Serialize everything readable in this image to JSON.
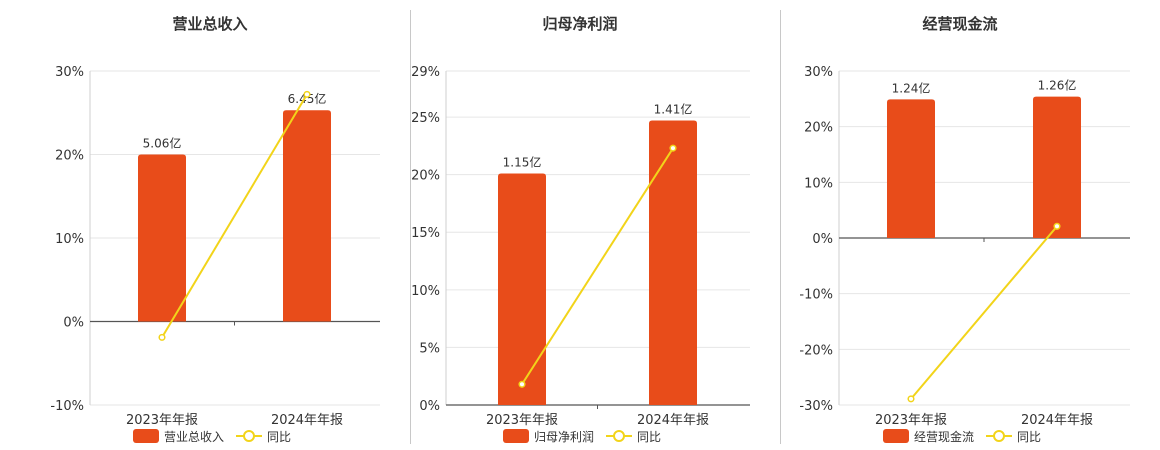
{
  "chart_data": [
    {
      "type": "bar",
      "title": "营业总收入",
      "categories": [
        "2023年年报",
        "2024年年报"
      ],
      "bar_labels": [
        "5.06亿",
        "6.45亿"
      ],
      "yoy_percent": [
        -1.9,
        27.2
      ],
      "ylim": [
        -10,
        30
      ],
      "yticks": [
        -10,
        0,
        10,
        20,
        30
      ],
      "ytick_labels": [
        "-10%",
        "0%",
        "10%",
        "20%",
        "30%"
      ],
      "bar_ref_percent": [
        20,
        25.3
      ],
      "legend": [
        "营业总收入",
        "同比"
      ],
      "legend_position": "bottom",
      "bar_color": "#e84c1a",
      "line_color": "#f2d41a"
    },
    {
      "type": "bar",
      "title": "归母净利润",
      "categories": [
        "2023年年报",
        "2024年年报"
      ],
      "bar_labels": [
        "1.15亿",
        "1.41亿"
      ],
      "yoy_percent": [
        1.8,
        22.3
      ],
      "ylim": [
        0,
        29
      ],
      "yticks": [
        0,
        5,
        10,
        15,
        20,
        25,
        29
      ],
      "ytick_labels": [
        "0%",
        "5%",
        "10%",
        "15%",
        "20%",
        "25%",
        "29%"
      ],
      "bar_ref_percent": [
        20.1,
        24.7
      ],
      "legend": [
        "归母净利润",
        "同比"
      ],
      "legend_position": "bottom",
      "bar_color": "#e84c1a",
      "line_color": "#f2d41a"
    },
    {
      "type": "bar",
      "title": "经营现金流",
      "categories": [
        "2023年年报",
        "2024年年报"
      ],
      "bar_labels": [
        "1.24亿",
        "1.26亿"
      ],
      "yoy_percent": [
        -28.9,
        2.1
      ],
      "ylim": [
        -30,
        30
      ],
      "yticks": [
        -30,
        -20,
        -10,
        0,
        10,
        20,
        30
      ],
      "ytick_labels": [
        "-30%",
        "-20%",
        "-10%",
        "0%",
        "10%",
        "20%",
        "30%"
      ],
      "bar_ref_percent": [
        24.9,
        25.4
      ],
      "legend": [
        "经营现金流",
        "同比"
      ],
      "legend_position": "bottom",
      "bar_color": "#e84c1a",
      "line_color": "#f2d41a"
    }
  ]
}
